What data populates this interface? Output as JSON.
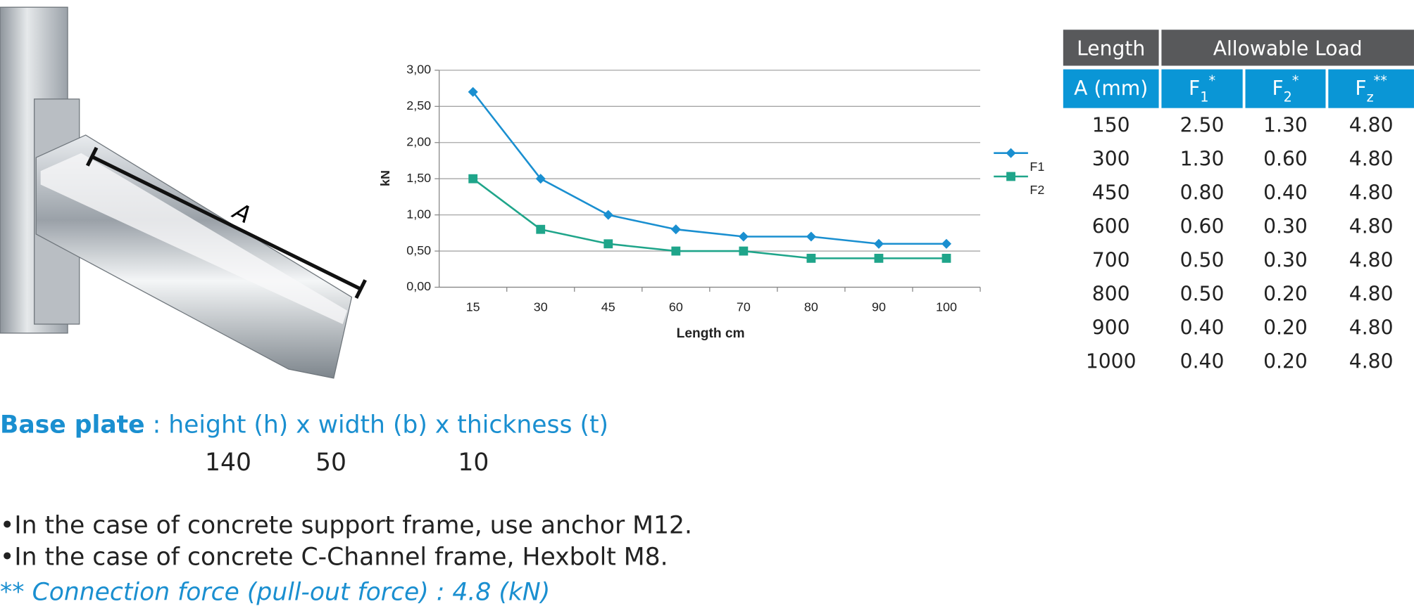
{
  "chart_data": {
    "type": "line",
    "y_label": "kN",
    "x_label": "Length cm",
    "categories": [
      "15",
      "30",
      "45",
      "60",
      "70",
      "80",
      "90",
      "100"
    ],
    "series": [
      {
        "name": "F1",
        "color": "#1a8fd0",
        "marker": "diamond",
        "values": [
          2.7,
          1.5,
          1.0,
          0.8,
          0.7,
          0.7,
          0.6,
          0.6
        ]
      },
      {
        "name": "F2",
        "color": "#1fa58a",
        "marker": "square",
        "values": [
          1.5,
          0.8,
          0.6,
          0.5,
          0.5,
          0.4,
          0.4,
          0.4
        ]
      }
    ],
    "ylim": [
      0,
      3
    ],
    "yticks": [
      {
        "value": 0,
        "label": "0,00"
      },
      {
        "value": 0.5,
        "label": "0,50"
      },
      {
        "value": 1,
        "label": "1,00"
      },
      {
        "value": 1.5,
        "label": "1,50"
      },
      {
        "value": 2,
        "label": "2,00"
      },
      {
        "value": 2.5,
        "label": "2,50"
      },
      {
        "value": 3,
        "label": "3,00"
      }
    ],
    "grid": true,
    "legend": "right"
  },
  "figure": {
    "dimension_label": "A"
  },
  "table": {
    "header_top": [
      "Length",
      "Allowable Load"
    ],
    "header_sub": [
      {
        "text": "A (mm)"
      },
      {
        "base": "F",
        "sub": "1",
        "sup": "*"
      },
      {
        "base": "F",
        "sub": "2",
        "sup": "*"
      },
      {
        "base": "F",
        "sub": "z",
        "sup": "**"
      }
    ],
    "rows": [
      [
        "150",
        "2.50",
        "1.30",
        "4.80"
      ],
      [
        "300",
        "1.30",
        "0.60",
        "4.80"
      ],
      [
        "450",
        "0.80",
        "0.40",
        "4.80"
      ],
      [
        "600",
        "0.60",
        "0.30",
        "4.80"
      ],
      [
        "700",
        "0.50",
        "0.30",
        "4.80"
      ],
      [
        "800",
        "0.50",
        "0.20",
        "4.80"
      ],
      [
        "900",
        "0.40",
        "0.20",
        "4.80"
      ],
      [
        "1000",
        "0.40",
        "0.20",
        "4.80"
      ]
    ]
  },
  "notes": {
    "base_plate_label": "Base plate",
    "base_plate_text": " : height (h) x width (b) x thickness (t)",
    "base_plate_values": [
      "140",
      "50",
      "10"
    ],
    "bullets": [
      "•In the case of concrete support frame, use anchor M12.",
      "•In the case of concrete C-Channel frame, Hexbolt M8."
    ],
    "footnote": "** Connection force (pull-out force) : 4.8 (kN)"
  }
}
